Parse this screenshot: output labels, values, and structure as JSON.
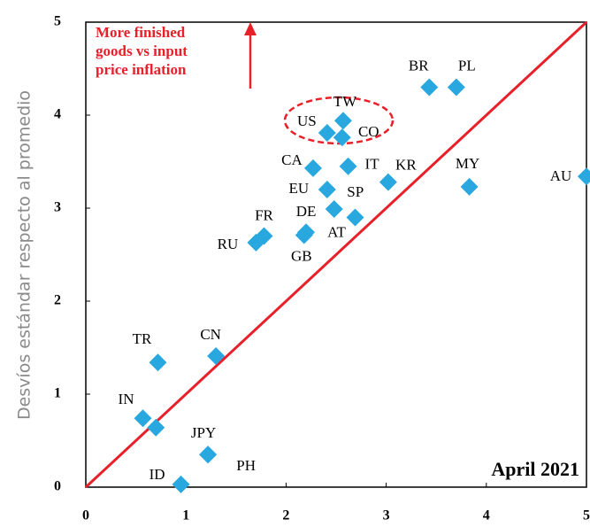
{
  "chart_data": {
    "type": "scatter",
    "ylabel": "Desvíos estándar respecto al promedio",
    "annotation": [
      "More finished",
      "goods vs input",
      "price inflation"
    ],
    "date_label": "April 2021",
    "xlim": [
      0,
      5
    ],
    "ylim": [
      0,
      5
    ],
    "xticks": [
      0,
      1,
      2,
      3,
      4,
      5
    ],
    "yticks": [
      0,
      1,
      2,
      3,
      4,
      5
    ],
    "color": "#29a8e0",
    "diagonal": {
      "x": [
        0,
        5
      ],
      "y": [
        0,
        5
      ],
      "color": "#e8202a"
    },
    "labels": [
      "BR",
      "PL",
      "TW",
      "US",
      "CO",
      "CA",
      "IT",
      "KR",
      "MY",
      "AU",
      "EU",
      "SP",
      "AT",
      "DE",
      "GB",
      "FR",
      "RU",
      "TR",
      "CN",
      "IN",
      null,
      "JPY",
      "PH",
      "ID"
    ],
    "x": [
      3.43,
      3.7,
      2.57,
      2.41,
      2.56,
      2.27,
      2.62,
      3.02,
      3.83,
      5.0,
      2.41,
      2.48,
      2.69,
      2.2,
      2.18,
      1.78,
      1.7,
      0.72,
      1.3,
      0.57,
      0.7,
      1.22,
      1.22,
      0.95
    ],
    "y": [
      4.3,
      4.3,
      3.94,
      3.81,
      3.76,
      3.43,
      3.45,
      3.28,
      3.23,
      3.34,
      3.2,
      2.99,
      2.9,
      2.74,
      2.71,
      2.7,
      2.63,
      1.34,
      1.41,
      0.74,
      0.64,
      0.35,
      0.35,
      0.03
    ]
  }
}
